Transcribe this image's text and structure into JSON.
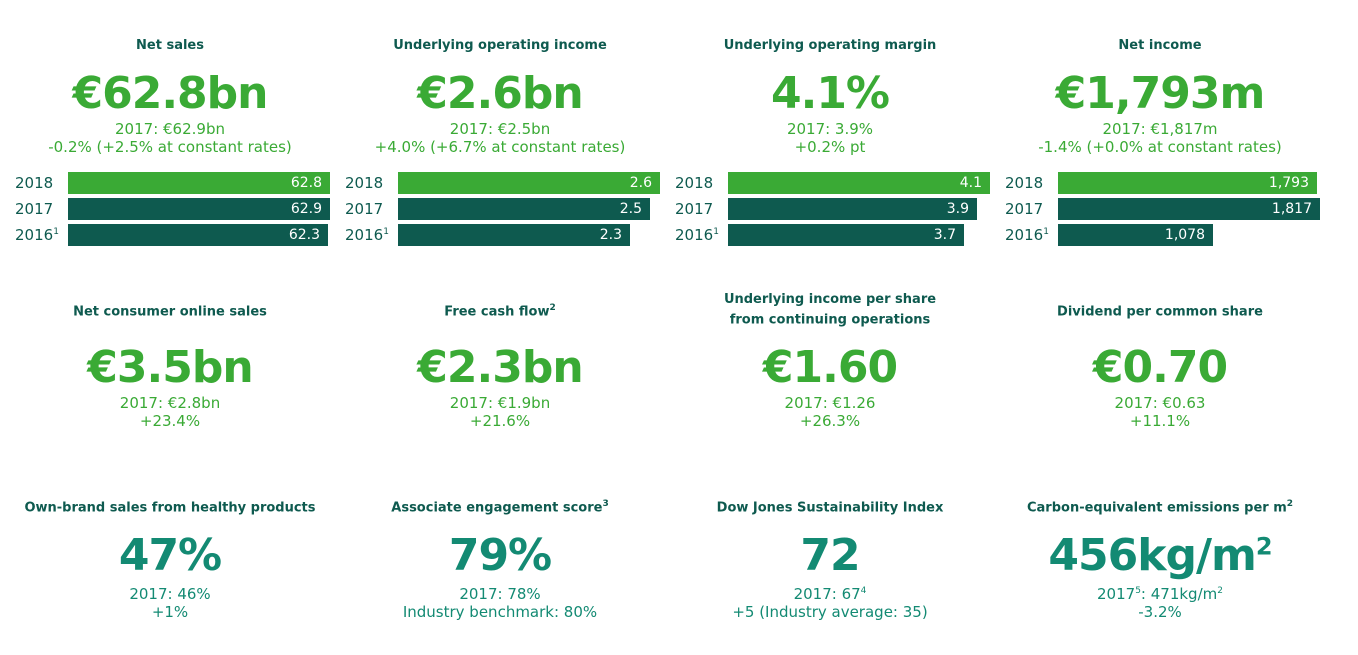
{
  "colors": {
    "light_green": "#3aaa35",
    "dark_teal": "#0e5a4f",
    "teal": "#138a73"
  },
  "row1": [
    {
      "label": "Net sales",
      "value": "€62.8bn",
      "comparison": "2017: €62.9bn",
      "change": "-0.2% (+2.5% at constant rates)",
      "bars": [
        {
          "year": "2018",
          "footnote": "",
          "value": 62.8,
          "label": "62.8"
        },
        {
          "year": "2017",
          "footnote": "",
          "value": 62.9,
          "label": "62.9"
        },
        {
          "year": "2016",
          "footnote": "1",
          "value": 62.3,
          "label": "62.3"
        }
      ]
    },
    {
      "label": "Underlying operating income",
      "value": "€2.6bn",
      "comparison": "2017: €2.5bn",
      "change": "+4.0% (+6.7% at constant rates)",
      "bars": [
        {
          "year": "2018",
          "footnote": "",
          "value": 2.6,
          "label": "2.6"
        },
        {
          "year": "2017",
          "footnote": "",
          "value": 2.5,
          "label": "2.5"
        },
        {
          "year": "2016",
          "footnote": "1",
          "value": 2.3,
          "label": "2.3"
        }
      ]
    },
    {
      "label": "Underlying operating margin",
      "value": "4.1%",
      "comparison": "2017: 3.9%",
      "change": "+0.2% pt",
      "bars": [
        {
          "year": "2018",
          "footnote": "",
          "value": 4.1,
          "label": "4.1"
        },
        {
          "year": "2017",
          "footnote": "",
          "value": 3.9,
          "label": "3.9"
        },
        {
          "year": "2016",
          "footnote": "1",
          "value": 3.7,
          "label": "3.7"
        }
      ]
    },
    {
      "label": "Net income",
      "value": "€1,793m",
      "comparison": "2017: €1,817m",
      "change": "-1.4% (+0.0% at constant rates)",
      "bars": [
        {
          "year": "2018",
          "footnote": "",
          "value": 1793,
          "label": "1,793"
        },
        {
          "year": "2017",
          "footnote": "",
          "value": 1817,
          "label": "1,817"
        },
        {
          "year": "2016",
          "footnote": "1",
          "value": 1078,
          "label": "1,078"
        }
      ]
    }
  ],
  "row2": [
    {
      "label": "Net consumer online sales",
      "label_sup": "",
      "value": "€3.5bn",
      "comparison": "2017: €2.8bn",
      "change": "+23.4%"
    },
    {
      "label": "Free cash flow",
      "label_sup": "2",
      "value": "€2.3bn",
      "comparison": "2017: €1.9bn",
      "change": "+21.6%"
    },
    {
      "label": "Underlying income per share from continuing operations",
      "label_sup": "",
      "value": "€1.60",
      "comparison": "2017: €1.26",
      "change": "+26.3%"
    },
    {
      "label": "Dividend per common share",
      "label_sup": "",
      "value": "€0.70",
      "comparison": "2017: €0.63",
      "change": "+11.1%"
    }
  ],
  "row3": [
    {
      "label": "Own-brand sales from healthy products",
      "label_sup": "",
      "value": "47%",
      "value_sup": "",
      "comparison": "2017: 46%",
      "comparison_sup": "",
      "comparison_unit": "",
      "comparison_unit_sup": "",
      "change": "+1%"
    },
    {
      "label": "Associate engagement score",
      "label_sup": "3",
      "value": "79%",
      "value_sup": "",
      "comparison": "2017: 78%",
      "comparison_sup": "",
      "comparison_unit": "",
      "comparison_unit_sup": "",
      "change": "Industry benchmark: 80%"
    },
    {
      "label": "Dow Jones Sustainability Index",
      "label_sup": "",
      "value": "72",
      "value_sup": "",
      "comparison": "2017: 67",
      "comparison_sup": "4",
      "comparison_unit": "",
      "comparison_unit_sup": "",
      "change": "+5 (Industry average: 35)"
    },
    {
      "label": "Carbon-equivalent emissions per m",
      "label_sup": "2",
      "value": "456kg/m",
      "value_sup": "2",
      "comparison": "2017",
      "comparison_sup": "5",
      "comparison_unit": ": 471kg/m",
      "comparison_unit_sup": "2",
      "change": "-3.2%"
    }
  ],
  "chart_data": [
    {
      "type": "bar",
      "title": "Net sales",
      "categories": [
        "2018",
        "2017",
        "2016"
      ],
      "values": [
        62.8,
        62.9,
        62.3
      ]
    },
    {
      "type": "bar",
      "title": "Underlying operating income",
      "categories": [
        "2018",
        "2017",
        "2016"
      ],
      "values": [
        2.6,
        2.5,
        2.3
      ]
    },
    {
      "type": "bar",
      "title": "Underlying operating margin",
      "categories": [
        "2018",
        "2017",
        "2016"
      ],
      "values": [
        4.1,
        3.9,
        3.7
      ]
    },
    {
      "type": "bar",
      "title": "Net income",
      "categories": [
        "2018",
        "2017",
        "2016"
      ],
      "values": [
        1793,
        1817,
        1078
      ]
    }
  ]
}
